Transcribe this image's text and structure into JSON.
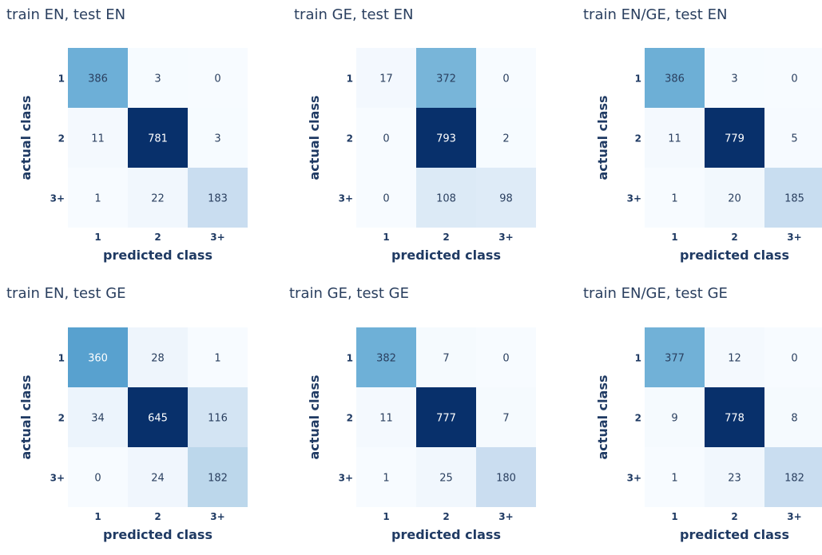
{
  "chart_data": [
    {
      "type": "heatmap",
      "title": "train EN, test EN",
      "xlabel": "predicted class",
      "ylabel": "actual class",
      "x_categories": [
        "1",
        "2",
        "3+"
      ],
      "y_categories": [
        "1",
        "2",
        "3+"
      ],
      "values": [
        [
          386,
          3,
          0
        ],
        [
          11,
          781,
          3
        ],
        [
          1,
          22,
          183
        ]
      ]
    },
    {
      "type": "heatmap",
      "title": "train GE, test EN",
      "xlabel": "predicted class",
      "ylabel": "actual class",
      "x_categories": [
        "1",
        "2",
        "3+"
      ],
      "y_categories": [
        "1",
        "2",
        "3+"
      ],
      "values": [
        [
          17,
          372,
          0
        ],
        [
          0,
          793,
          2
        ],
        [
          0,
          108,
          98
        ]
      ]
    },
    {
      "type": "heatmap",
      "title": "train EN/GE, test EN",
      "xlabel": "predicted class",
      "ylabel": "actual class",
      "x_categories": [
        "1",
        "2",
        "3+"
      ],
      "y_categories": [
        "1",
        "2",
        "3+"
      ],
      "values": [
        [
          386,
          3,
          0
        ],
        [
          11,
          779,
          5
        ],
        [
          1,
          20,
          185
        ]
      ]
    },
    {
      "type": "heatmap",
      "title": "train EN, test GE",
      "xlabel": "predicted class",
      "ylabel": "actual class",
      "x_categories": [
        "1",
        "2",
        "3+"
      ],
      "y_categories": [
        "1",
        "2",
        "3+"
      ],
      "values": [
        [
          360,
          28,
          1
        ],
        [
          34,
          645,
          116
        ],
        [
          0,
          24,
          182
        ]
      ]
    },
    {
      "type": "heatmap",
      "title": "train GE, test GE",
      "xlabel": "predicted class",
      "ylabel": "actual class",
      "x_categories": [
        "1",
        "2",
        "3+"
      ],
      "y_categories": [
        "1",
        "2",
        "3+"
      ],
      "values": [
        [
          382,
          7,
          0
        ],
        [
          11,
          777,
          7
        ],
        [
          1,
          25,
          180
        ]
      ]
    },
    {
      "type": "heatmap",
      "title": "train EN/GE, test GE",
      "xlabel": "predicted class",
      "ylabel": "actual class",
      "x_categories": [
        "1",
        "2",
        "3+"
      ],
      "y_categories": [
        "1",
        "2",
        "3+"
      ],
      "values": [
        [
          377,
          12,
          0
        ],
        [
          9,
          778,
          8
        ],
        [
          1,
          23,
          182
        ]
      ]
    }
  ],
  "colors": {
    "scale_low": "#f7fbff",
    "scale_high": "#08306b",
    "text_dark": "#2a3f5f",
    "text_light": "#ffffff",
    "axis_label": "#1f3a63"
  }
}
